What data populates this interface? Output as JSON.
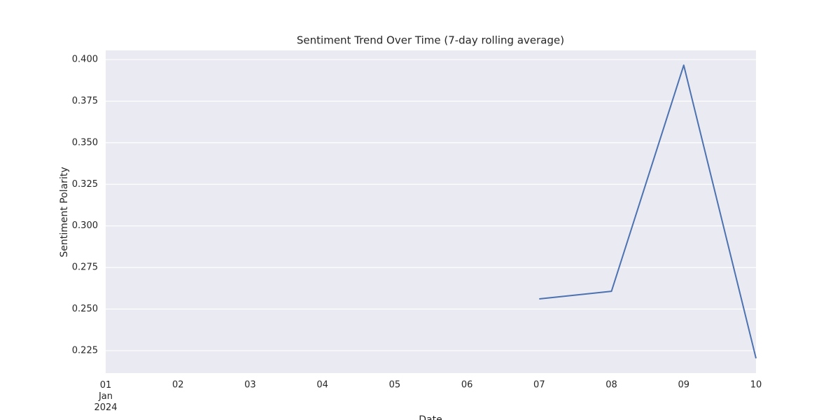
{
  "chart_data": {
    "type": "line",
    "title": "Sentiment Trend Over Time (7-day rolling average)",
    "xlabel": "Date",
    "ylabel": "Sentiment Polarity",
    "x": [
      "2024-01-01",
      "2024-01-02",
      "2024-01-03",
      "2024-01-04",
      "2024-01-05",
      "2024-01-06",
      "2024-01-07",
      "2024-01-08",
      "2024-01-09",
      "2024-01-10"
    ],
    "series": [
      {
        "name": "Sentiment Polarity",
        "color": "#4c72b0",
        "values": [
          null,
          null,
          null,
          null,
          null,
          null,
          0.2561,
          0.2607,
          0.3966,
          0.2204
        ]
      }
    ],
    "xlim": [
      "2024-01-01",
      "2024-01-10"
    ],
    "xticks": [
      {
        "value": "2024-01-01",
        "label": "01\nJan\n2024"
      },
      {
        "value": "2024-01-02",
        "label": "02"
      },
      {
        "value": "2024-01-03",
        "label": "03"
      },
      {
        "value": "2024-01-04",
        "label": "04"
      },
      {
        "value": "2024-01-05",
        "label": "05"
      },
      {
        "value": "2024-01-06",
        "label": "06"
      },
      {
        "value": "2024-01-07",
        "label": "07"
      },
      {
        "value": "2024-01-08",
        "label": "08"
      },
      {
        "value": "2024-01-09",
        "label": "09"
      },
      {
        "value": "2024-01-10",
        "label": "10"
      }
    ],
    "ylim": [
      0.2115,
      0.4055
    ],
    "yticks": [
      {
        "value": 0.225,
        "label": "0.225"
      },
      {
        "value": 0.25,
        "label": "0.250"
      },
      {
        "value": 0.275,
        "label": "0.275"
      },
      {
        "value": 0.3,
        "label": "0.300"
      },
      {
        "value": 0.325,
        "label": "0.325"
      },
      {
        "value": 0.35,
        "label": "0.350"
      },
      {
        "value": 0.375,
        "label": "0.375"
      },
      {
        "value": 0.4,
        "label": "0.400"
      }
    ],
    "grid": "y",
    "background": "#eaeaf2"
  }
}
